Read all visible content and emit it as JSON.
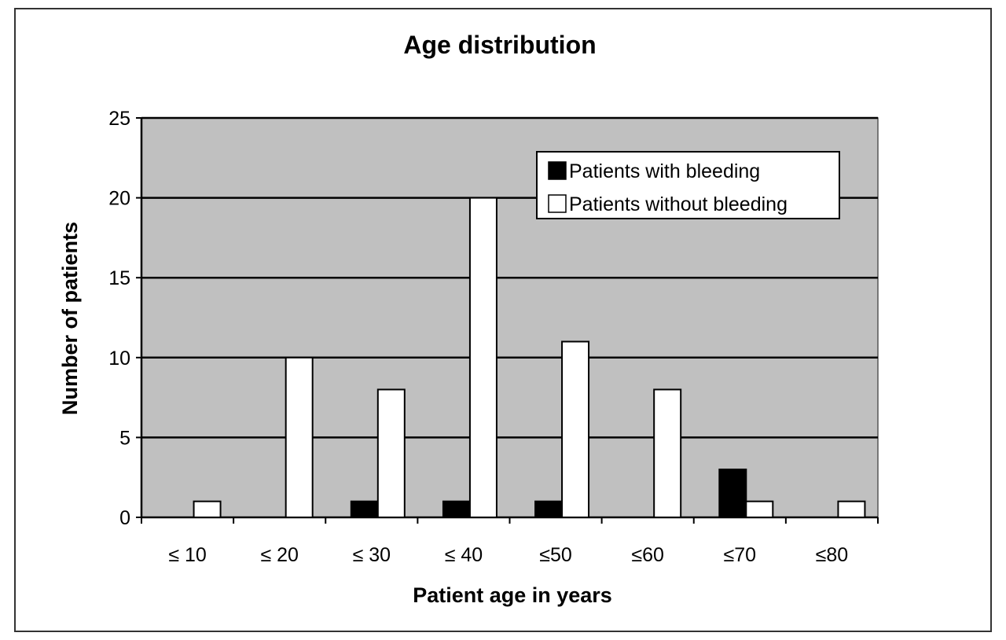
{
  "chart_data": {
    "type": "bar",
    "title": "Age distribution",
    "xlabel": "Patient age in years",
    "ylabel": "Number of patients",
    "categories": [
      "≤ 10",
      "≤ 20",
      "≤ 30",
      "≤ 40",
      "≤50",
      "≤60",
      "≤70",
      "≤80"
    ],
    "series": [
      {
        "name": "Patients with bleeding",
        "values": [
          0,
          0,
          1,
          1,
          1,
          0,
          3,
          0
        ],
        "color": "#000000"
      },
      {
        "name": "Patients without bleeding",
        "values": [
          1,
          10,
          8,
          20,
          11,
          8,
          1,
          1
        ],
        "color": "#ffffff"
      }
    ],
    "ylim": [
      0,
      25
    ],
    "yticks": [
      0,
      5,
      10,
      15,
      20,
      25
    ],
    "grid": true,
    "legend_position": "top-right",
    "plot_background": "#c0c0c0"
  }
}
